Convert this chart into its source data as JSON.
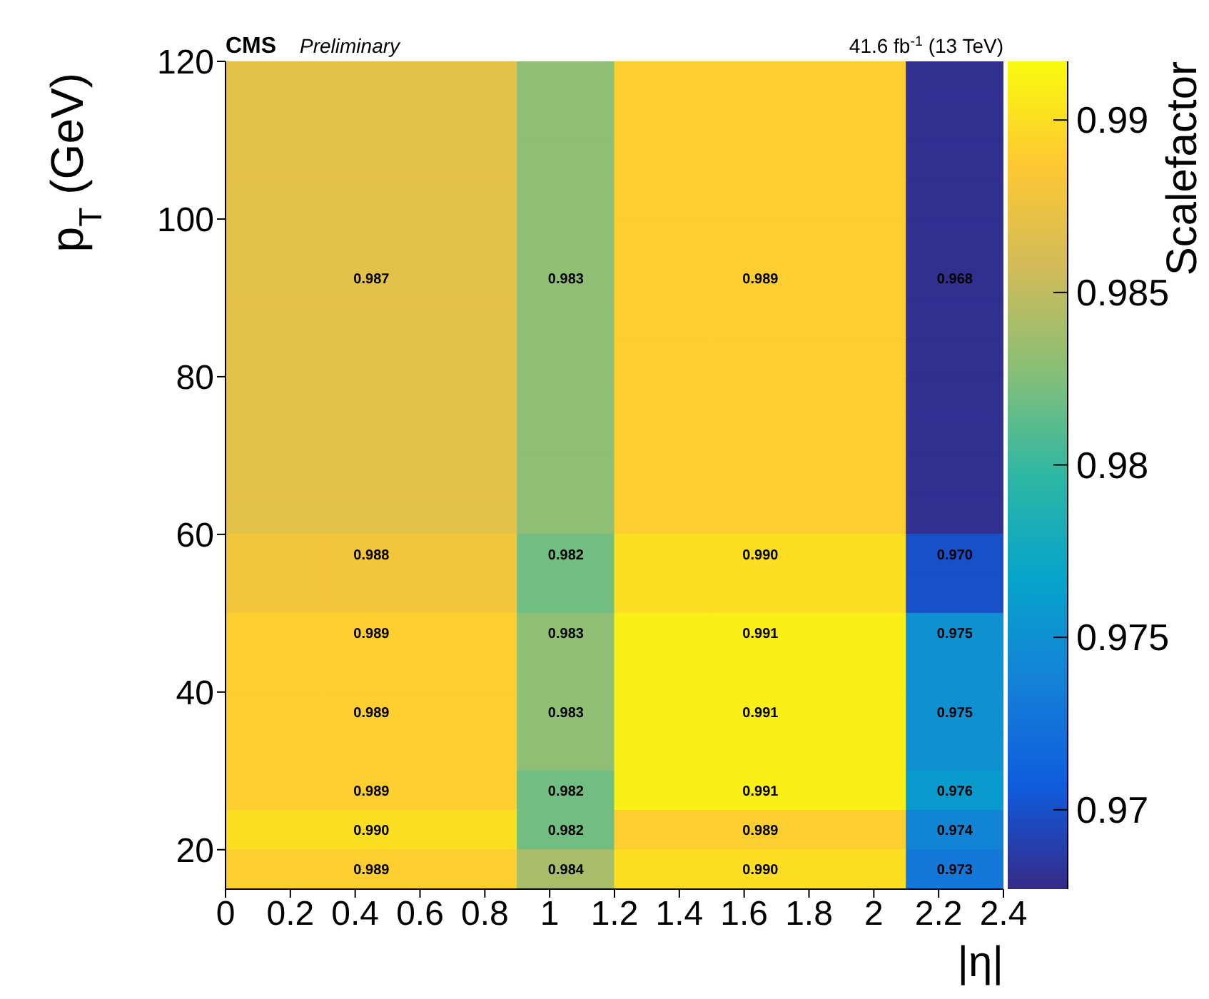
{
  "chart_data": {
    "type": "heatmap",
    "title": "CMS",
    "subtitle": "Preliminary",
    "annotations": [
      "41.6 fb$^{-1}$ (13 TeV)"
    ],
    "xlabel": "|η|",
    "ylabel": "p$_{T}$ (GeV)",
    "clabel": "Scalefactor",
    "cells": [
      [
        0.987,
        0.987,
        0.987,
        0.983,
        0.989,
        0.989,
        0.989,
        0.968
      ],
      [
        0.987,
        0.987,
        0.987,
        0.983,
        0.989,
        0.989,
        0.989,
        0.968
      ],
      [
        0.987,
        0.987,
        0.987,
        0.983,
        0.989,
        0.989,
        0.989,
        0.968
      ],
      [
        0.987,
        0.987,
        0.987,
        0.983,
        0.989,
        0.989,
        0.989,
        0.968
      ],
      [
        0.987,
        0.987,
        0.987,
        0.983,
        0.989,
        0.989,
        0.989,
        0.968
      ],
      [
        0.987,
        0.987,
        0.987,
        0.983,
        0.989,
        0.989,
        0.989,
        0.968
      ],
      [
        0.987,
        0.987,
        0.987,
        0.983,
        0.989,
        0.989,
        0.989,
        0.968
      ],
      [
        0.987,
        0.987,
        0.987,
        0.983,
        0.989,
        0.989,
        0.989,
        0.968
      ],
      [
        0.987,
        0.987,
        0.987,
        0.983,
        0.989,
        0.989,
        0.989,
        0.968
      ],
      [
        0.987,
        0.987,
        0.987,
        0.983,
        0.989,
        0.989,
        0.989,
        0.968
      ],
      [
        0.987,
        0.987,
        0.987,
        0.983,
        0.989,
        0.989,
        0.989,
        0.968
      ],
      [
        0.987,
        0.987,
        0.987,
        0.983,
        0.989,
        0.989,
        0.989,
        0.968
      ],
      [
        0.988,
        0.988,
        0.988,
        0.982,
        0.99,
        0.99,
        0.99,
        0.97
      ],
      [
        0.988,
        0.988,
        0.988,
        0.982,
        0.99,
        0.99,
        0.99,
        0.97
      ],
      [
        0.989,
        0.989,
        0.989,
        0.983,
        0.991,
        0.991,
        0.991,
        0.975
      ],
      [
        0.989,
        0.989,
        0.989,
        0.983,
        0.991,
        0.991,
        0.991,
        0.975
      ],
      [
        0.989,
        0.989,
        0.989,
        0.983,
        0.991,
        0.991,
        0.991,
        0.975
      ],
      [
        0.989,
        0.989,
        0.989,
        0.983,
        0.991,
        0.991,
        0.991,
        0.975
      ],
      [
        0.989,
        0.989,
        0.989,
        0.982,
        0.991,
        0.991,
        0.991,
        0.976
      ],
      [
        0.99,
        0.99,
        0.99,
        0.982,
        0.989,
        0.989,
        0.989,
        0.974
      ],
      [
        0.989,
        0.989,
        0.989,
        0.984,
        0.99,
        0.99,
        0.99,
        0.973
      ]
    ],
    "cell_labels": [
      [
        null,
        null,
        null,
        null,
        null,
        null,
        null,
        null
      ],
      [
        null,
        null,
        null,
        null,
        null,
        null,
        null,
        null
      ],
      [
        null,
        null,
        null,
        null,
        null,
        null,
        null,
        null
      ],
      [
        null,
        null,
        null,
        null,
        null,
        null,
        null,
        null
      ],
      [
        null,
        null,
        null,
        null,
        null,
        null,
        null,
        null
      ],
      [
        null,
        "0.987",
        null,
        "0.983",
        null,
        "0.989",
        null,
        "0.968"
      ],
      [
        null,
        null,
        null,
        null,
        null,
        null,
        null,
        null
      ],
      [
        null,
        null,
        null,
        null,
        null,
        null,
        null,
        null
      ],
      [
        null,
        null,
        null,
        null,
        null,
        null,
        null,
        null
      ],
      [
        null,
        null,
        null,
        null,
        null,
        null,
        null,
        null
      ],
      [
        null,
        null,
        null,
        null,
        null,
        null,
        null,
        null
      ],
      [
        null,
        null,
        null,
        null,
        null,
        null,
        null,
        null
      ],
      [
        null,
        "0.988",
        null,
        "0.982",
        null,
        "0.990",
        null,
        "0.970"
      ],
      [
        null,
        null,
        null,
        null,
        null,
        null,
        null,
        null
      ],
      [
        null,
        "0.989",
        null,
        "0.983",
        null,
        "0.991",
        null,
        "0.975"
      ],
      [
        null,
        null,
        null,
        null,
        null,
        null,
        null,
        null
      ],
      [
        null,
        "0.989",
        null,
        "0.983",
        null,
        "0.991",
        null,
        "0.975"
      ],
      [
        null,
        null,
        null,
        null,
        null,
        null,
        null,
        null
      ],
      [
        null,
        "0.989",
        null,
        "0.982",
        null,
        "0.991",
        null,
        "0.976"
      ],
      [
        null,
        "0.990",
        null,
        "0.982",
        null,
        "0.989",
        null,
        "0.974"
      ],
      [
        null,
        "0.989",
        null,
        "0.984",
        null,
        "0.990",
        null,
        "0.973"
      ]
    ],
    "xlim": [
      0,
      2.4
    ],
    "xticks": [
      0,
      {
        "value": 0.2,
        "label": "0.2"
      },
      {
        "value": 0.4,
        "label": "0.4"
      },
      {
        "value": 0.6,
        "label": "0.6"
      },
      {
        "value": 0.8,
        "label": "0.8"
      },
      1,
      {
        "value": 1.2,
        "label": "1.2"
      },
      {
        "value": 1.4,
        "label": "1.4"
      },
      {
        "value": 1.6,
        "label": "1.6"
      },
      {
        "value": 1.8,
        "label": "1.8"
      },
      2,
      {
        "value": 2.2,
        "label": "2.2"
      },
      {
        "value": 2.4,
        "label": "2.4"
      }
    ],
    "ylim": [
      15,
      120
    ],
    "yticks": [
      20,
      40,
      60,
      80,
      100,
      120
    ],
    "clim": [
      0.9677,
      0.9917
    ],
    "cticks": [
      0.97,
      0.975,
      0.98,
      0.985,
      0.99
    ]
  }
}
